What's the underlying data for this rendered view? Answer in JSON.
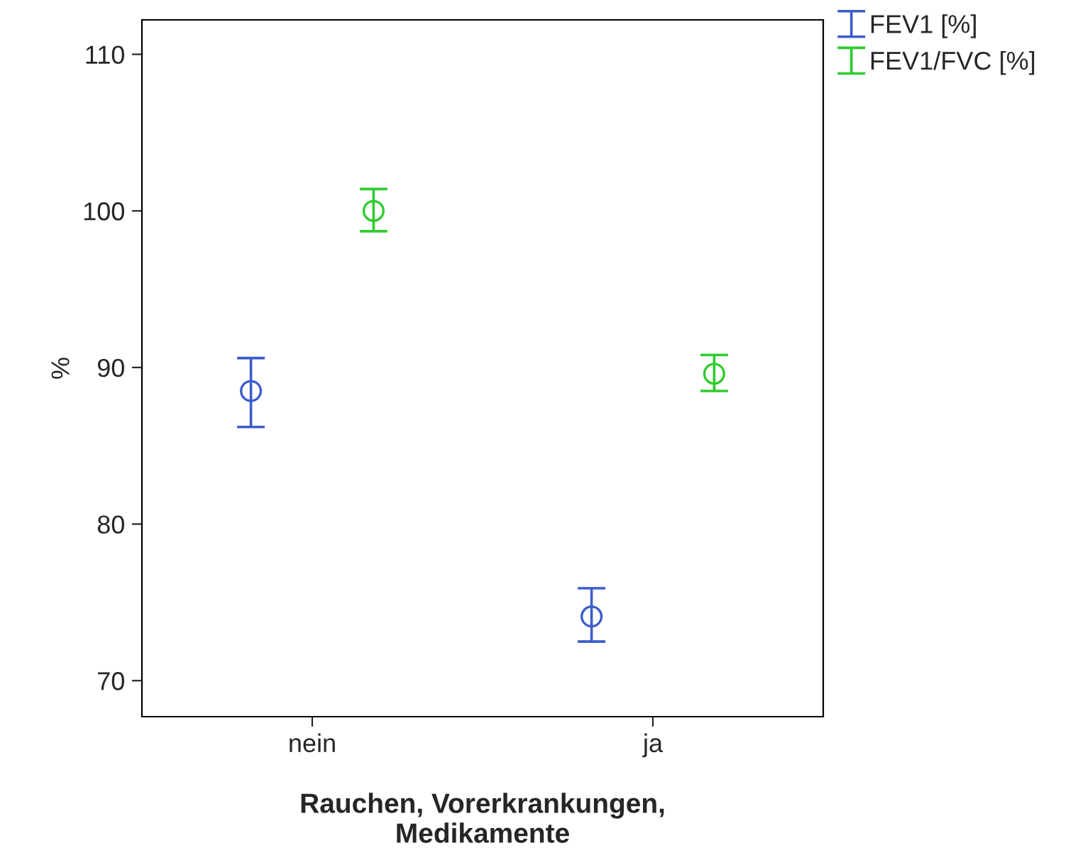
{
  "chart_data": {
    "type": "scatter",
    "xlabel": "Rauchen, Vorerkrankungen,\nMedikamente",
    "ylabel": "%",
    "categories": [
      "nein",
      "ja"
    ],
    "series": [
      {
        "name": "FEV1 [%]",
        "color": "#3c5ccc",
        "values": [
          88.5,
          74.1
        ],
        "errors": [
          [
            86.2,
            90.6
          ],
          [
            72.5,
            75.9
          ]
        ]
      },
      {
        "name": "FEV1/FVC [%]",
        "color": "#2ecc2e",
        "values": [
          100.0,
          89.6
        ],
        "errors": [
          [
            98.7,
            101.4
          ],
          [
            88.5,
            90.8
          ]
        ]
      }
    ],
    "ylim": [
      67.7,
      112.2
    ],
    "yticks": [
      70,
      80,
      90,
      100,
      110
    ],
    "grid": false,
    "legend": "top right",
    "marker": "circle"
  }
}
